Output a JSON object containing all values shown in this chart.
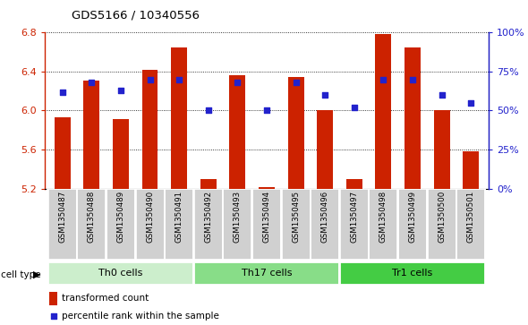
{
  "title": "GDS5166 / 10340556",
  "samples": [
    "GSM1350487",
    "GSM1350488",
    "GSM1350489",
    "GSM1350490",
    "GSM1350491",
    "GSM1350492",
    "GSM1350493",
    "GSM1350494",
    "GSM1350495",
    "GSM1350496",
    "GSM1350497",
    "GSM1350498",
    "GSM1350499",
    "GSM1350500",
    "GSM1350501"
  ],
  "bar_values": [
    5.93,
    6.31,
    5.91,
    6.42,
    6.65,
    5.3,
    6.36,
    5.21,
    6.34,
    6.0,
    5.3,
    6.78,
    6.65,
    6.0,
    5.58
  ],
  "dot_values": [
    62,
    68,
    63,
    70,
    70,
    50,
    68,
    50,
    68,
    60,
    52,
    70,
    70,
    60,
    55
  ],
  "bar_color": "#cc2200",
  "dot_color": "#2222cc",
  "ylim_left": [
    5.2,
    6.8
  ],
  "ylim_right": [
    0,
    100
  ],
  "yticks_left": [
    5.2,
    5.6,
    6.0,
    6.4,
    6.8
  ],
  "yticks_right": [
    0,
    25,
    50,
    75,
    100
  ],
  "ytick_labels_right": [
    "0%",
    "25%",
    "50%",
    "75%",
    "100%"
  ],
  "groups": [
    {
      "label": "Th0 cells",
      "start": 0,
      "end": 5,
      "color": "#cceecc"
    },
    {
      "label": "Th17 cells",
      "start": 5,
      "end": 10,
      "color": "#88dd88"
    },
    {
      "label": "Tr1 cells",
      "start": 10,
      "end": 15,
      "color": "#44cc44"
    }
  ],
  "cell_type_label": "cell type",
  "legend_bar": "transformed count",
  "legend_dot": "percentile rank within the sample",
  "plot_bg": "#ffffff",
  "ticklabel_bg": "#d0d0d0",
  "base_value": 5.2
}
